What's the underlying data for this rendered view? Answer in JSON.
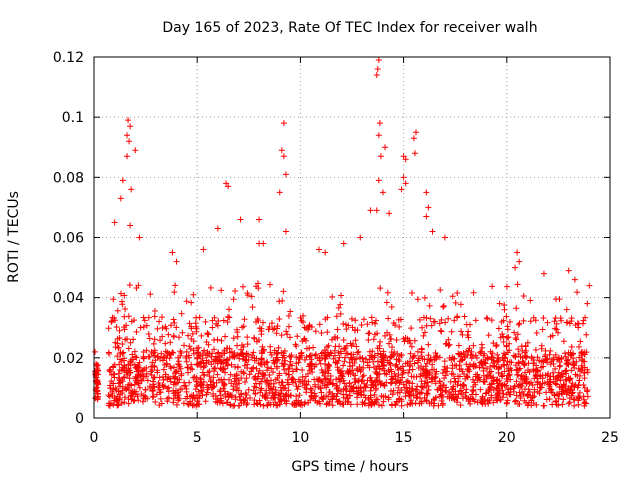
{
  "chart_data": {
    "type": "scatter",
    "title": "Day 165 of 2023, Rate Of TEC Index for receiver walh",
    "xlabel": "GPS time / hours",
    "ylabel": "ROTI / TECUs",
    "xlim": [
      0,
      25
    ],
    "ylim": [
      0,
      0.12
    ],
    "grid": true,
    "marker": "+",
    "series": [
      {
        "name": "ROTI",
        "color": "#ff0000",
        "points": [
          [
            0.05,
            0.022
          ],
          [
            0.1,
            0.018
          ],
          [
            0.15,
            0.012
          ],
          [
            1.4,
            0.079
          ],
          [
            1.6,
            0.094
          ],
          [
            1.65,
            0.099
          ],
          [
            1.7,
            0.092
          ],
          [
            1.75,
            0.097
          ],
          [
            1.8,
            0.076
          ],
          [
            1.75,
            0.064
          ],
          [
            1.6,
            0.087
          ],
          [
            2.0,
            0.089
          ],
          [
            1.3,
            0.073
          ],
          [
            1.0,
            0.065
          ],
          [
            2.2,
            0.06
          ],
          [
            3.8,
            0.055
          ],
          [
            5.3,
            0.056
          ],
          [
            6.4,
            0.078
          ],
          [
            6.5,
            0.077
          ],
          [
            6.0,
            0.063
          ],
          [
            7.1,
            0.066
          ],
          [
            8.0,
            0.066
          ],
          [
            8.2,
            0.058
          ],
          [
            8.0,
            0.058
          ],
          [
            9.2,
            0.098
          ],
          [
            9.1,
            0.089
          ],
          [
            9.2,
            0.087
          ],
          [
            9.3,
            0.081
          ],
          [
            9.0,
            0.075
          ],
          [
            9.3,
            0.062
          ],
          [
            10.9,
            0.056
          ],
          [
            11.2,
            0.055
          ],
          [
            12.1,
            0.058
          ],
          [
            12.9,
            0.06
          ],
          [
            13.8,
            0.119
          ],
          [
            13.75,
            0.116
          ],
          [
            13.7,
            0.114
          ],
          [
            13.85,
            0.098
          ],
          [
            13.8,
            0.094
          ],
          [
            14.1,
            0.09
          ],
          [
            13.9,
            0.087
          ],
          [
            13.8,
            0.079
          ],
          [
            14.0,
            0.075
          ],
          [
            13.7,
            0.069
          ],
          [
            13.4,
            0.069
          ],
          [
            14.3,
            0.068
          ],
          [
            15.6,
            0.095
          ],
          [
            15.5,
            0.093
          ],
          [
            15.55,
            0.088
          ],
          [
            15.1,
            0.086
          ],
          [
            15.0,
            0.087
          ],
          [
            15.0,
            0.08
          ],
          [
            15.1,
            0.078
          ],
          [
            14.9,
            0.076
          ],
          [
            16.1,
            0.075
          ],
          [
            16.2,
            0.07
          ],
          [
            16.1,
            0.067
          ],
          [
            16.4,
            0.062
          ],
          [
            17.0,
            0.06
          ],
          [
            20.5,
            0.055
          ],
          [
            20.6,
            0.052
          ],
          [
            20.4,
            0.05
          ],
          [
            21.8,
            0.048
          ],
          [
            23.0,
            0.049
          ],
          [
            23.3,
            0.046
          ],
          [
            24.0,
            0.044
          ],
          [
            23.9,
            0.038
          ],
          [
            4.0,
            0.052
          ]
        ],
        "dense_band": {
          "x_range": [
            0.7,
            24.0
          ],
          "y_range": [
            0.004,
            0.045
          ],
          "note": "dense continuous band of ROTI samples throughout the day"
        }
      }
    ]
  }
}
